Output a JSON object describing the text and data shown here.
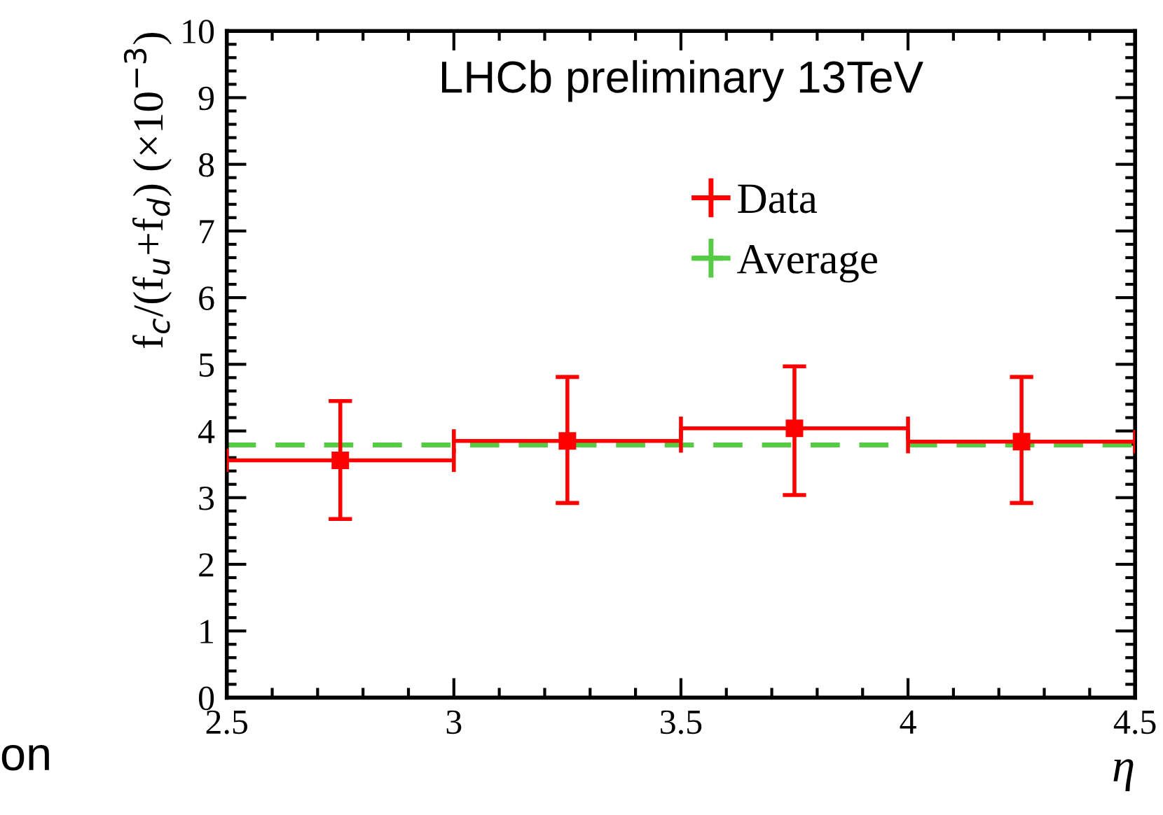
{
  "chart_data": {
    "type": "scatter",
    "xlabel": "η",
    "ylabel": "f$_{c}$/(f$_{u}$+f$_{d}$) (×10$^{−3}$)",
    "annotations": [
      "LHCb preliminary 13TeV",
      "on"
    ],
    "x": [
      2.75,
      3.25,
      3.75,
      4.25
    ],
    "series": [
      {
        "name": "Data",
        "color": "#ff0000",
        "values": [
          3.56,
          3.85,
          4.04,
          3.84
        ],
        "errors": [
          [
            2.68,
            4.45
          ],
          [
            2.92,
            4.81
          ],
          [
            3.04,
            4.97
          ],
          [
            2.92,
            4.81
          ]
        ],
        "xerrors": [
          0.25,
          0.25,
          0.25,
          0.25
        ]
      }
    ],
    "ref_lines": [
      {
        "axis": "y",
        "value": 3.79,
        "label": "Average",
        "color": "#55cc44",
        "line_style": "dashed"
      }
    ],
    "marker": "square",
    "xlim": [
      2.5,
      4.5
    ],
    "xticks": [
      2.5,
      3,
      3.5,
      4,
      4.5
    ],
    "ylim": [
      0,
      10
    ],
    "yticks": [
      0,
      1,
      2,
      3,
      4,
      5,
      6,
      7,
      8,
      9,
      10
    ],
    "grid": false,
    "legend": "top right"
  }
}
